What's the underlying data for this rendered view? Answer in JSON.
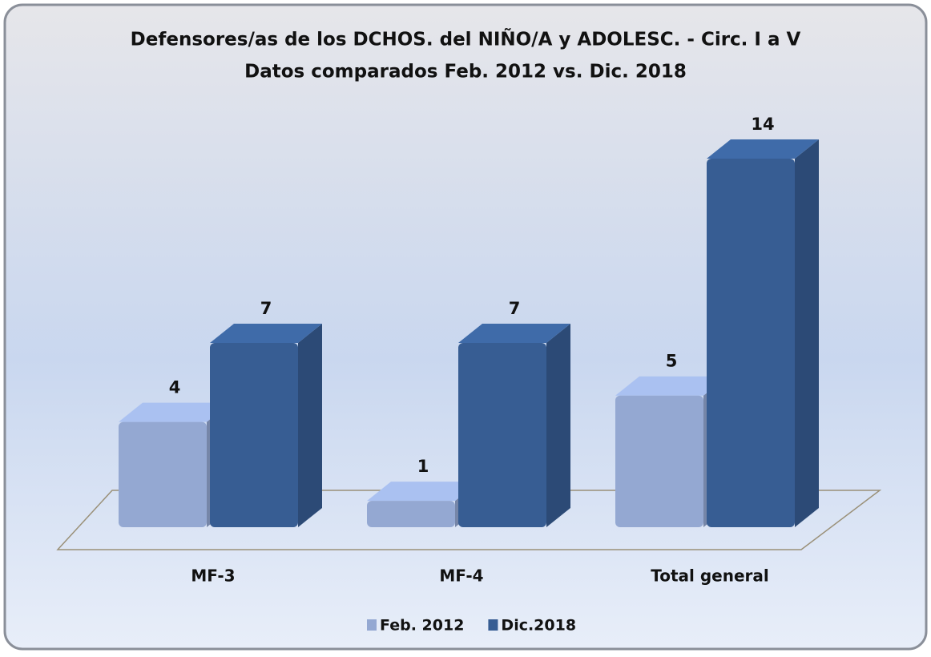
{
  "chart_data": {
    "type": "bar3d",
    "title": [
      "Defensores/as de los DCHOS. del NIÑO/A y ADOLESC. - Circ. I a V",
      "Datos comparados Feb. 2012 vs. Dic. 2018"
    ],
    "categories": [
      "MF-3",
      "MF-4",
      "Total general"
    ],
    "series": [
      {
        "name": "Feb. 2012",
        "color": "#94a8d2",
        "values": [
          4,
          1,
          5
        ]
      },
      {
        "name": "Dic.2018",
        "color": "#375d93",
        "values": [
          7,
          7,
          14
        ]
      }
    ],
    "legend": "bottom"
  }
}
